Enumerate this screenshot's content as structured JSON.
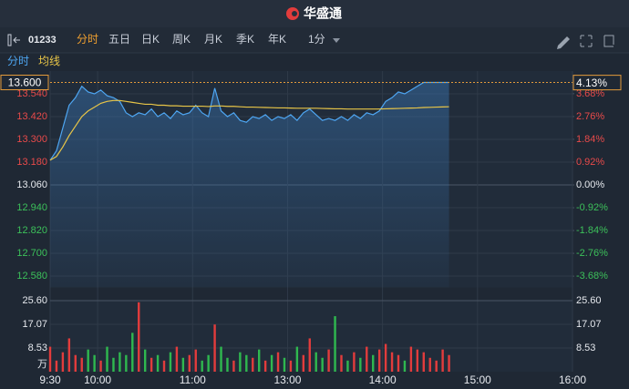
{
  "header": {
    "brand": "华盛通"
  },
  "toolbar": {
    "code": "01233",
    "tabs": [
      "分时",
      "五日",
      "日K",
      "周K",
      "月K",
      "季K",
      "年K"
    ],
    "active_tab": 0,
    "interval": "1分"
  },
  "chart_data": {
    "type": "line",
    "series": [
      {
        "name": "分时",
        "color": "#4ea6f2",
        "values": [
          13.19,
          13.24,
          13.36,
          13.48,
          13.52,
          13.58,
          13.55,
          13.54,
          13.56,
          13.53,
          13.52,
          13.5,
          13.44,
          13.42,
          13.44,
          13.43,
          13.46,
          13.42,
          13.44,
          13.41,
          13.45,
          13.43,
          13.44,
          13.48,
          13.44,
          13.42,
          13.57,
          13.45,
          13.42,
          13.44,
          13.4,
          13.39,
          13.42,
          13.41,
          13.43,
          13.4,
          13.42,
          13.41,
          13.43,
          13.4,
          13.44,
          13.46,
          13.43,
          13.4,
          13.41,
          13.4,
          13.42,
          13.4,
          13.43,
          13.41,
          13.44,
          13.43,
          13.45,
          13.5,
          13.52,
          13.55,
          13.54,
          13.56,
          13.58,
          13.6,
          13.6,
          13.6,
          13.6,
          13.6
        ]
      },
      {
        "name": "均线",
        "color": "#e8c547",
        "values": [
          13.19,
          13.21,
          13.26,
          13.32,
          13.37,
          13.42,
          13.45,
          13.47,
          13.49,
          13.5,
          13.505,
          13.505,
          13.5,
          13.495,
          13.49,
          13.485,
          13.485,
          13.48,
          13.48,
          13.477,
          13.477,
          13.475,
          13.475,
          13.475,
          13.475,
          13.473,
          13.476,
          13.476,
          13.474,
          13.474,
          13.472,
          13.47,
          13.47,
          13.469,
          13.468,
          13.467,
          13.466,
          13.466,
          13.465,
          13.464,
          13.464,
          13.464,
          13.464,
          13.463,
          13.462,
          13.461,
          13.461,
          13.46,
          13.46,
          13.46,
          13.46,
          13.46,
          13.46,
          13.461,
          13.462,
          13.463,
          13.464,
          13.465,
          13.466,
          13.468,
          13.469,
          13.47,
          13.471,
          13.472
        ]
      }
    ],
    "x": [
      0,
      4,
      8,
      12,
      16,
      20,
      24,
      28,
      32,
      36,
      40,
      44,
      48,
      52,
      56,
      60,
      64,
      68,
      72,
      76,
      80,
      84,
      88,
      92,
      96,
      100,
      104,
      108,
      112,
      116,
      120,
      124,
      128,
      132,
      136,
      140,
      144,
      148,
      152,
      156,
      160,
      164,
      168,
      172,
      176,
      180,
      184,
      188,
      192,
      196,
      200,
      204,
      208,
      212,
      216,
      220,
      224,
      228,
      232,
      236,
      240,
      244,
      248,
      252
    ],
    "xlim": [
      0,
      330
    ],
    "xticks": [
      {
        "value": 0,
        "label": "9:30"
      },
      {
        "value": 30,
        "label": "10:00"
      },
      {
        "value": 90,
        "label": "11:00"
      },
      {
        "value": 150,
        "label": "13:00"
      },
      {
        "value": 210,
        "label": "14:00"
      },
      {
        "value": 270,
        "label": "15:00"
      },
      {
        "value": 330,
        "label": "16:00"
      }
    ],
    "ylim": [
      12.52,
      13.66
    ],
    "yticks": [
      {
        "value": 13.54,
        "label": "13.540"
      },
      {
        "value": 13.42,
        "label": "13.420"
      },
      {
        "value": 13.3,
        "label": "13.300"
      },
      {
        "value": 13.18,
        "label": "13.180"
      },
      {
        "value": 13.06,
        "label": "13.060"
      },
      {
        "value": 12.94,
        "label": "12.940"
      },
      {
        "value": 12.82,
        "label": "12.820"
      },
      {
        "value": 12.7,
        "label": "12.700"
      },
      {
        "value": 12.58,
        "label": "12.580"
      }
    ],
    "y2lim": [
      -4.135,
      4.594
    ],
    "y2ticks": [
      {
        "value": 3.68,
        "label": "3.68%"
      },
      {
        "value": 2.76,
        "label": "2.76%"
      },
      {
        "value": 1.84,
        "label": "1.84%"
      },
      {
        "value": 0.92,
        "label": "0.92%"
      },
      {
        "value": 0,
        "label": "0.00%"
      },
      {
        "value": -0.92,
        "label": "-0.92%"
      },
      {
        "value": -1.84,
        "label": "-1.84%"
      },
      {
        "value": -2.76,
        "label": "-2.76%"
      },
      {
        "value": -3.68,
        "label": "-3.68%"
      }
    ],
    "last_price": {
      "value": 13.6,
      "label": "13.600"
    },
    "last_change": {
      "value": 4.13,
      "label": "4.13%"
    },
    "volume": {
      "values": [
        9,
        4,
        7,
        12,
        6,
        5,
        8,
        6,
        4,
        9,
        5,
        7,
        6,
        14,
        25,
        8,
        5,
        6,
        4,
        7,
        9,
        5,
        6,
        8,
        4,
        6,
        17,
        9,
        5,
        4,
        7,
        6,
        5,
        8,
        4,
        6,
        7,
        5,
        4,
        9,
        6,
        12,
        7,
        5,
        8,
        20,
        6,
        4,
        7,
        5,
        9,
        6,
        8,
        10,
        7,
        6,
        4,
        9,
        8,
        7,
        5,
        4,
        8,
        6
      ],
      "ylim": [
        0,
        25.6
      ],
      "yticks": [
        {
          "value": 25.6,
          "label": "25.60"
        },
        {
          "value": 17.07,
          "label": "17.07"
        },
        {
          "value": 8.53,
          "label": "8.53"
        }
      ],
      "unit": "万",
      "up_color": "#e23c3c",
      "down_color": "#2fb84f"
    }
  }
}
